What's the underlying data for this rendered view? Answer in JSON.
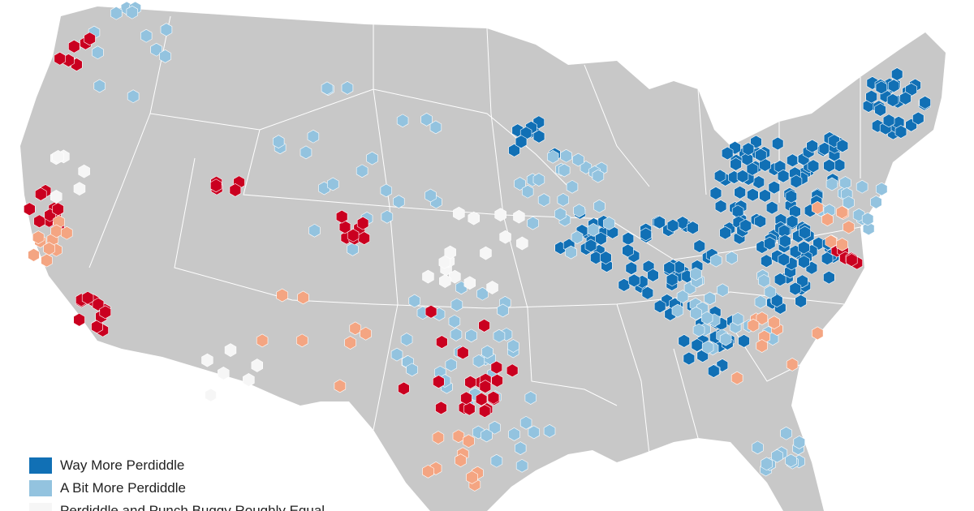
{
  "colors": {
    "land": "#c8c8c8",
    "state_border": "#ffffff",
    "way_more": "#1170b5",
    "a_bit_more": "#93c3df",
    "equal": "#f6f6f6",
    "punch_bit_more": "#f4a582",
    "punch_way_more": "#ca0020"
  },
  "legend": {
    "items": [
      {
        "label": "Way More Perdiddle",
        "color": "#1170b5"
      },
      {
        "label": "A Bit More Perdiddle",
        "color": "#93c3df"
      },
      {
        "label": "Perdiddle and Punch Buggy Roughly Equal",
        "color": "#f6f6f6"
      }
    ]
  }
}
